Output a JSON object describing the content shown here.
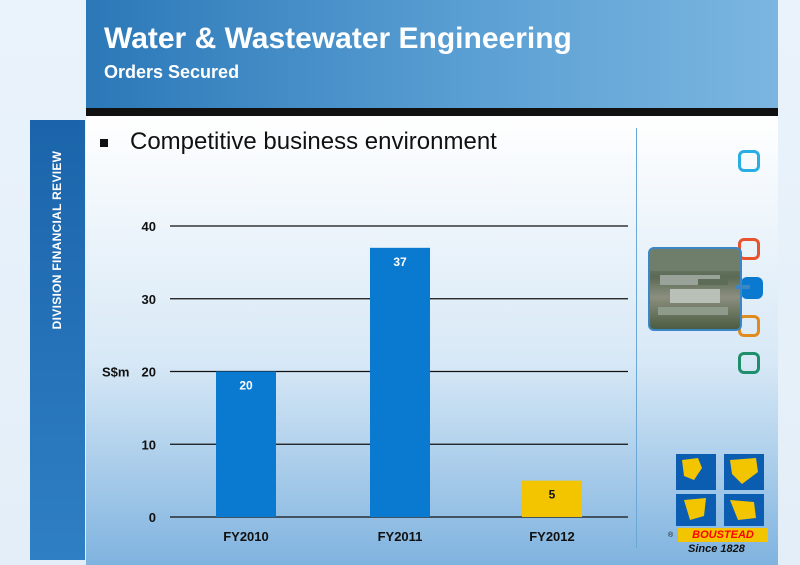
{
  "header": {
    "title": "Water & Wastewater Engineering",
    "subtitle": "Orders Secured"
  },
  "sidebar": {
    "label": "DIVISION FINANCIAL REVIEW"
  },
  "bullet": {
    "text": "Competitive business environment"
  },
  "chart_data": {
    "type": "bar",
    "categories": [
      "FY2010",
      "FY2011",
      "FY2012"
    ],
    "values": [
      20,
      37,
      5
    ],
    "data_labels": [
      "20",
      "37",
      "5"
    ],
    "bar_colors": [
      "#0a7ad1",
      "#0a7ad1",
      "#f2c500"
    ],
    "ylabel": "S$m",
    "ylim": [
      0,
      40
    ],
    "yticks": [
      0,
      10,
      20,
      30,
      40
    ],
    "grid": true
  },
  "nav_squares": {
    "colors": [
      "#29aee3",
      "#e8532e",
      "#0a7ad1",
      "#e08b1e",
      "#1e8f6a"
    ]
  },
  "logo": {
    "name": "BOUSTEAD",
    "since": "Since 1828",
    "mark": "®"
  }
}
